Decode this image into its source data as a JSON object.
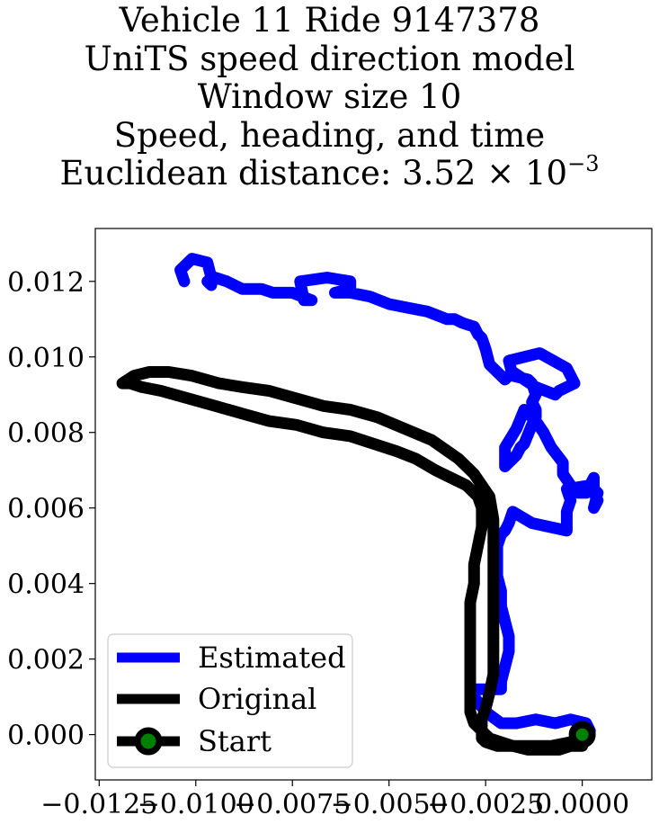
{
  "chart_data": {
    "type": "line",
    "title_lines": [
      "Vehicle 11 Ride 9147378",
      "UniTS speed direction model",
      "Window size 10",
      "Speed, heading, and time"
    ],
    "title_metric_prefix": "Euclidean distance: ",
    "title_metric_mantissa": "3.52",
    "title_metric_times": "×",
    "title_metric_base": "10",
    "title_metric_exponent": "−3",
    "xlim": [
      -0.0126,
      0.0018
    ],
    "ylim": [
      -0.0012,
      0.0134
    ],
    "x_ticks": [
      -0.0125,
      -0.01,
      -0.0075,
      -0.005,
      -0.0025,
      0.0
    ],
    "x_tick_labels": [
      "−0.0125",
      "−0.0100",
      "−0.0075",
      "−0.0050",
      "−0.0025",
      "0.0000"
    ],
    "y_ticks": [
      0.0,
      0.002,
      0.004,
      0.006,
      0.008,
      0.01,
      0.012
    ],
    "y_tick_labels": [
      "0.000",
      "0.002",
      "0.004",
      "0.006",
      "0.008",
      "0.010",
      "0.012"
    ],
    "grid": false,
    "legend_position": "lower-left",
    "series": [
      {
        "name": "Estimated",
        "color": "#0000ff",
        "x": [
          0.0002,
          0.0001,
          -0.0003,
          -0.0007,
          -0.0012,
          -0.0017,
          -0.0021,
          -0.0025,
          -0.0028,
          -0.0029,
          -0.0025,
          -0.0021,
          -0.0021,
          -0.002,
          -0.0019,
          -0.0019,
          -0.002,
          -0.0021,
          -0.0021,
          -0.0022,
          -0.0022,
          -0.0022,
          -0.0021,
          -0.002,
          -0.0019,
          -0.0018,
          -0.0013,
          -0.0004,
          -0.0004,
          -0.0003,
          -0.0004,
          0.0002,
          0.0003,
          0.0004,
          0.0003,
          0.0004,
          0.0003,
          0.0003,
          0.0002,
          0.0001,
          -0.0001,
          -0.0003,
          -0.0005,
          -0.0005,
          -0.0008,
          -0.001,
          -0.0012,
          -0.0015,
          -0.0017,
          -0.002,
          -0.002,
          -0.0017,
          -0.0016,
          -0.0015,
          -0.0013,
          -0.0012,
          -0.0012,
          -0.0013,
          -0.0012,
          -0.0013,
          -0.0014,
          -0.0018,
          -0.0019,
          -0.0011,
          -0.0004,
          -0.0002,
          -0.0006,
          -0.0007,
          -0.0012,
          -0.0018,
          -0.002,
          -0.0024,
          -0.0025,
          -0.0026,
          -0.0027,
          -0.0028,
          -0.0031,
          -0.0033,
          -0.0035,
          -0.004,
          -0.0045,
          -0.005,
          -0.0055,
          -0.006,
          -0.0064,
          -0.006,
          -0.006,
          -0.0066,
          -0.0073,
          -0.0072,
          -0.007,
          -0.0075,
          -0.008,
          -0.0083,
          -0.0088,
          -0.0092,
          -0.0095,
          -0.0097,
          -0.0096,
          -0.0096,
          -0.0097,
          -0.0101,
          -0.0104,
          -0.0103
        ],
        "y": [
          0.0001,
          0.0003,
          0.0004,
          0.0003,
          0.0004,
          0.0003,
          0.0003,
          0.0006,
          0.001,
          0.0012,
          0.0012,
          0.0012,
          0.0014,
          0.0018,
          0.0022,
          0.0026,
          0.003,
          0.0034,
          0.0038,
          0.0042,
          0.0046,
          0.005,
          0.0053,
          0.0054,
          0.0056,
          0.0059,
          0.0056,
          0.0054,
          0.0059,
          0.0062,
          0.0065,
          0.0066,
          0.0064,
          0.0062,
          0.006,
          0.0064,
          0.0065,
          0.0068,
          0.0066,
          0.0064,
          0.0064,
          0.0066,
          0.0069,
          0.0072,
          0.0076,
          0.008,
          0.0083,
          0.0086,
          0.0081,
          0.0076,
          0.0071,
          0.0074,
          0.0076,
          0.0077,
          0.0082,
          0.0084,
          0.0086,
          0.0088,
          0.009,
          0.0093,
          0.0094,
          0.0095,
          0.0099,
          0.0101,
          0.0097,
          0.0093,
          0.0091,
          0.009,
          0.0092,
          0.0096,
          0.0094,
          0.0098,
          0.0102,
          0.0105,
          0.0106,
          0.0108,
          0.0109,
          0.011,
          0.011,
          0.0112,
          0.0113,
          0.0114,
          0.0116,
          0.0117,
          0.0117,
          0.0118,
          0.012,
          0.0121,
          0.012,
          0.0115,
          0.0115,
          0.0117,
          0.0117,
          0.0118,
          0.0118,
          0.012,
          0.0121,
          0.012,
          0.0119,
          0.0121,
          0.0125,
          0.0126,
          0.0123,
          0.012
        ]
      },
      {
        "name": "Original",
        "color": "#000000",
        "x": [
          0.0,
          -0.0003,
          -0.0006,
          -0.001,
          -0.0014,
          -0.0018,
          -0.0021,
          -0.0024,
          -0.0026,
          -0.0028,
          -0.0029,
          -0.0029,
          -0.0029,
          -0.0029,
          -0.0029,
          -0.0029,
          -0.0029,
          -0.0028,
          -0.0028,
          -0.0027,
          -0.0026,
          -0.0026,
          -0.0027,
          -0.003,
          -0.0034,
          -0.0038,
          -0.0043,
          -0.0048,
          -0.0054,
          -0.006,
          -0.0067,
          -0.0074,
          -0.0081,
          -0.0088,
          -0.0095,
          -0.0102,
          -0.0109,
          -0.0114,
          -0.0117,
          -0.0119,
          -0.0116,
          -0.0112,
          -0.0107,
          -0.0101,
          -0.0094,
          -0.0088,
          -0.0081,
          -0.0074,
          -0.0067,
          -0.006,
          -0.0053,
          -0.0046,
          -0.0039,
          -0.0032,
          -0.0028,
          -0.0024,
          -0.0023,
          -0.0023,
          -0.0023,
          -0.0023,
          -0.0023,
          -0.0023,
          -0.0023,
          -0.0024,
          -0.0025,
          -0.0026,
          -0.0026,
          -0.0026,
          -0.0025,
          -0.0022,
          -0.0018,
          -0.0013,
          -0.0008,
          -0.0003,
          0.0
        ],
        "y": [
          -0.0003,
          -0.0003,
          -0.0004,
          -0.0004,
          -0.0004,
          -0.0003,
          -0.0002,
          -0.0001,
          0.0001,
          0.0003,
          0.0006,
          0.001,
          0.0015,
          0.002,
          0.0025,
          0.003,
          0.0035,
          0.004,
          0.0045,
          0.005,
          0.0055,
          0.006,
          0.0063,
          0.0066,
          0.0068,
          0.007,
          0.0073,
          0.0075,
          0.0077,
          0.0079,
          0.008,
          0.0082,
          0.0083,
          0.0085,
          0.0087,
          0.0089,
          0.0091,
          0.0092,
          0.0093,
          0.0093,
          0.0095,
          0.0096,
          0.0096,
          0.0095,
          0.0093,
          0.0092,
          0.0091,
          0.0089,
          0.0087,
          0.0086,
          0.0084,
          0.0081,
          0.0078,
          0.0073,
          0.0069,
          0.0063,
          0.0057,
          0.005,
          0.0043,
          0.0036,
          0.0029,
          0.0022,
          0.0016,
          0.0011,
          0.0007,
          0.0004,
          0.0001,
          -0.0001,
          -0.0002,
          -0.0003,
          -0.0003,
          -0.0003,
          -0.0003,
          -0.0002,
          -0.0002
        ]
      },
      {
        "name": "Start",
        "color": "#000000",
        "marker_color": "#008000",
        "x": [
          0.0
        ],
        "y": [
          0.0
        ]
      }
    ]
  }
}
